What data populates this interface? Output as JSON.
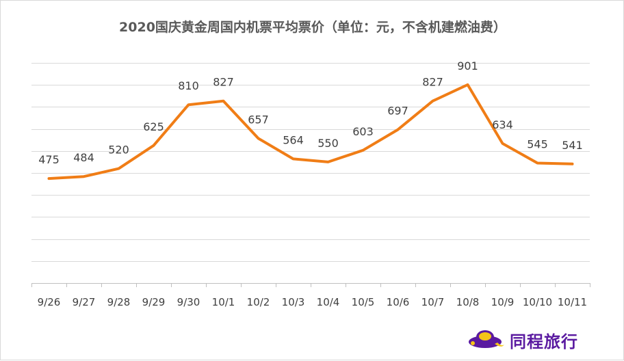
{
  "chart_data": {
    "type": "line",
    "title": "2020国庆黄金周国内机票平均票价（单位：元，不含机建燃油费）",
    "categories": [
      "9/26",
      "9/27",
      "9/28",
      "9/29",
      "9/30",
      "10/1",
      "10/2",
      "10/3",
      "10/4",
      "10/5",
      "10/6",
      "10/7",
      "10/8",
      "10/9",
      "10/10",
      "10/11"
    ],
    "series": [
      {
        "values": [
          475,
          484,
          520,
          625,
          810,
          827,
          657,
          564,
          550,
          603,
          697,
          827,
          901,
          634,
          545,
          541
        ]
      }
    ],
    "ylim": [
      0,
      1000
    ],
    "grid": true,
    "line_color": "#f07d16",
    "data_labels": true
  },
  "brand": {
    "name": "同程旅行",
    "logo_icon": "tongcheng-logo-icon",
    "color": "#5a1aa0"
  }
}
